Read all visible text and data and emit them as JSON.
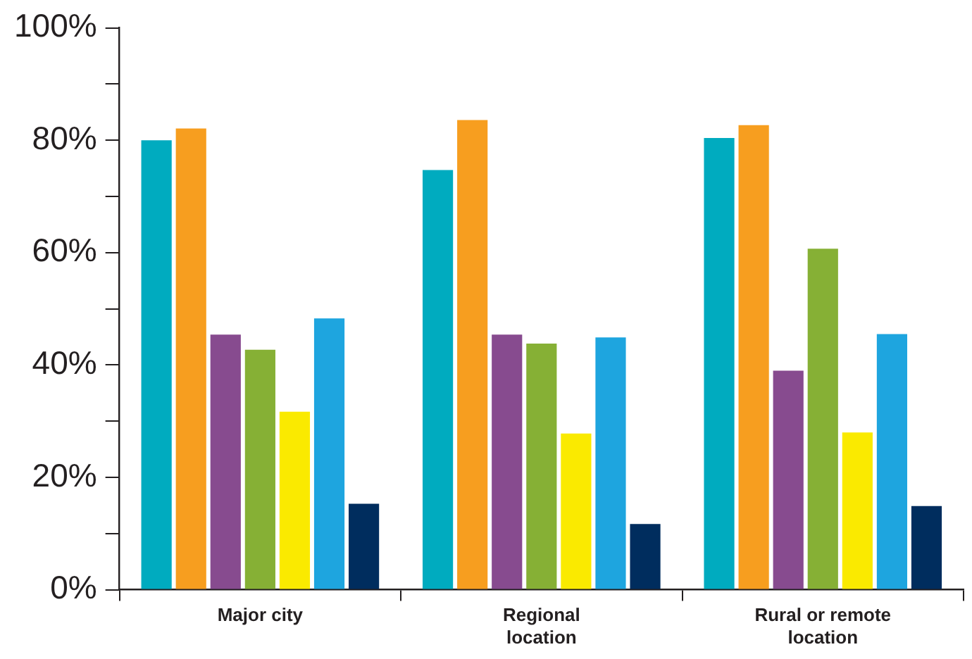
{
  "chart_data": {
    "type": "bar",
    "categories": [
      "Major city",
      "Regional location",
      "Rural or remote location"
    ],
    "series": [
      {
        "color": "#00abbf",
        "values": [
          80,
          74.7,
          80.4
        ]
      },
      {
        "color": "#f79e1f",
        "values": [
          82.1,
          83.6,
          82.7
        ]
      },
      {
        "color": "#874b8f",
        "values": [
          45.4,
          45.4,
          39
        ]
      },
      {
        "color": "#86b035",
        "values": [
          42.7,
          43.8,
          60.7
        ]
      },
      {
        "color": "#faea00",
        "values": [
          31.7,
          27.8,
          28
        ]
      },
      {
        "color": "#1ea5df",
        "values": [
          48.3,
          44.9,
          45.5
        ]
      },
      {
        "color": "#002d5e",
        "values": [
          15.3,
          11.7,
          14.9
        ]
      }
    ],
    "ylim": [
      0,
      100
    ],
    "yticks": [
      {
        "value": 0,
        "label": "0%"
      },
      {
        "value": 10,
        "label": null
      },
      {
        "value": 20,
        "label": "20%"
      },
      {
        "value": 30,
        "label": null
      },
      {
        "value": 40,
        "label": "40%"
      },
      {
        "value": 50,
        "label": null
      },
      {
        "value": 60,
        "label": "60%"
      },
      {
        "value": 70,
        "label": null
      },
      {
        "value": 80,
        "label": "80%"
      },
      {
        "value": 90,
        "label": null
      },
      {
        "value": 100,
        "label": "100%"
      }
    ],
    "grid": false,
    "legend": false
  }
}
